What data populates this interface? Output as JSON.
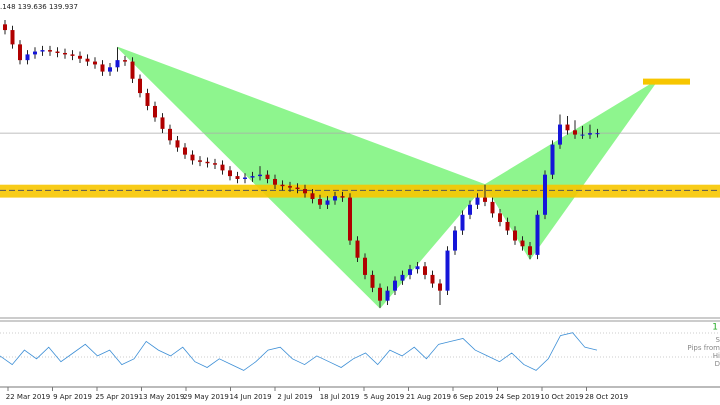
{
  "chart_data": {
    "type": "candlestick",
    "header": ".148 139.636 139.937",
    "ylim": [
      125.0,
      147.0
    ],
    "open": [
      145.3,
      144.9,
      143.9,
      142.8,
      143.2,
      143.4,
      143.5,
      143.4,
      143.3,
      143.2,
      143.1,
      142.9,
      142.7,
      142.5,
      142.0,
      142.3,
      142.8,
      142.7,
      141.5,
      140.5,
      139.6,
      138.8,
      138.0,
      137.2,
      136.7,
      136.2,
      135.8,
      135.7,
      135.6,
      135.5,
      135.1,
      134.7,
      134.5,
      134.6,
      134.7,
      134.8,
      134.5,
      134.1,
      134.0,
      133.9,
      133.8,
      133.5,
      133.1,
      132.7,
      133.0,
      133.3,
      133.2,
      130.2,
      129.0,
      127.8,
      126.9,
      126.0,
      126.7,
      127.4,
      127.8,
      128.2,
      128.4,
      127.8,
      127.2,
      126.7,
      129.5,
      130.9,
      132.0,
      132.7,
      133.2,
      132.9,
      132.1,
      131.5,
      130.9,
      130.2,
      129.8,
      129.2,
      132.0,
      134.8,
      136.9,
      138.3,
      137.9,
      137.6,
      137.6,
      137.7
    ],
    "high": [
      145.6,
      145.2,
      144.2,
      143.5,
      143.7,
      143.8,
      143.8,
      143.7,
      143.6,
      143.5,
      143.4,
      143.2,
      143.0,
      142.8,
      142.6,
      143.7,
      143.1,
      143.0,
      141.8,
      140.8,
      139.9,
      139.1,
      138.3,
      137.5,
      137.0,
      136.5,
      136.1,
      136.0,
      135.9,
      135.8,
      135.4,
      135.0,
      134.9,
      135.0,
      135.4,
      135.1,
      134.8,
      134.4,
      134.3,
      134.2,
      134.1,
      133.8,
      133.4,
      133.3,
      133.6,
      133.6,
      133.5,
      130.5,
      129.3,
      128.1,
      127.2,
      127.0,
      127.7,
      128.1,
      128.5,
      128.7,
      128.7,
      128.1,
      127.5,
      129.8,
      131.2,
      132.3,
      133.0,
      133.5,
      134.1,
      133.2,
      132.4,
      131.8,
      131.2,
      130.5,
      130.1,
      132.3,
      135.1,
      137.2,
      139.0,
      138.9,
      138.6,
      138.2,
      138.3,
      138.0
    ],
    "low": [
      144.6,
      143.6,
      142.5,
      142.5,
      142.9,
      143.1,
      143.1,
      143.0,
      142.9,
      142.8,
      142.6,
      142.4,
      142.2,
      141.7,
      141.7,
      142.0,
      142.4,
      141.2,
      140.2,
      139.3,
      138.5,
      137.7,
      136.9,
      136.4,
      135.9,
      135.5,
      135.4,
      135.3,
      135.2,
      134.8,
      134.4,
      134.2,
      134.2,
      134.3,
      134.4,
      134.2,
      133.8,
      133.7,
      133.6,
      133.5,
      133.2,
      132.8,
      132.4,
      132.4,
      132.7,
      132.9,
      129.9,
      128.7,
      127.5,
      126.6,
      125.5,
      125.7,
      126.4,
      127.1,
      127.5,
      127.9,
      127.5,
      126.9,
      125.7,
      126.4,
      129.2,
      130.6,
      131.7,
      132.4,
      132.6,
      131.8,
      131.2,
      130.6,
      129.9,
      129.5,
      128.9,
      128.9,
      131.7,
      134.5,
      136.6,
      137.6,
      137.3,
      137.3,
      137.3,
      137.4
    ],
    "close": [
      144.9,
      143.9,
      142.8,
      143.2,
      143.4,
      143.5,
      143.4,
      143.3,
      143.2,
      143.1,
      142.9,
      142.7,
      142.5,
      142.0,
      142.3,
      142.8,
      142.7,
      141.5,
      140.5,
      139.6,
      138.8,
      138.0,
      137.2,
      136.7,
      136.2,
      135.8,
      135.7,
      135.6,
      135.5,
      135.1,
      134.7,
      134.5,
      134.6,
      134.7,
      134.8,
      134.5,
      134.1,
      134.0,
      133.9,
      133.8,
      133.5,
      133.1,
      132.7,
      133.0,
      133.3,
      133.2,
      130.2,
      129.0,
      127.8,
      126.9,
      126.0,
      126.7,
      127.4,
      127.8,
      128.2,
      128.4,
      127.8,
      127.2,
      126.7,
      129.5,
      130.9,
      132.0,
      132.7,
      133.2,
      132.9,
      132.1,
      131.5,
      130.9,
      130.2,
      129.8,
      129.2,
      132.0,
      134.8,
      136.9,
      138.3,
      137.9,
      137.6,
      137.6,
      137.7,
      137.7
    ],
    "up_color": "#1515d8",
    "down_color": "#b00000",
    "current_price": 137.7,
    "pattern": [
      {
        "x": 15,
        "price": 143.7
      },
      {
        "x": 50,
        "price": 125.5
      },
      {
        "x": 64,
        "price": 134.1
      },
      {
        "x": 70,
        "price": 128.9
      },
      {
        "x": 87,
        "price": 141.4
      }
    ],
    "pattern_color": "#8ef58e",
    "zone": {
      "top": 134.1,
      "bottom": 133.2,
      "mid": 133.7,
      "color": "#f7c600"
    },
    "target": {
      "price": 141.3,
      "color": "#f7c600"
    },
    "x_labels": [
      "22 Mar 2019",
      "9 Apr 2019",
      "25 Apr 2019",
      "13 May 2019",
      "29 May 2019",
      "14 Jun 2019",
      "2 Jul 2019",
      "18 Jul 2019",
      "5 Aug 2019",
      "21 Aug 2019",
      "6 Sep 2019",
      "24 Sep 2019",
      "10 Oct 2019",
      "28 Oct 2019"
    ],
    "oscillator": {
      "ylim": [
        0,
        100
      ],
      "color": "#3d8fd6",
      "values": [
        45,
        30,
        55,
        40,
        60,
        35,
        50,
        65,
        45,
        55,
        30,
        40,
        70,
        55,
        45,
        60,
        35,
        25,
        40,
        30,
        20,
        35,
        55,
        60,
        40,
        30,
        45,
        35,
        25,
        40,
        50,
        30,
        55,
        45,
        60,
        40,
        65,
        70,
        75,
        55,
        45,
        35,
        50,
        30,
        20,
        40,
        80,
        85,
        60,
        55
      ]
    },
    "info": {
      "count": "1",
      "lines": [
        "S",
        "Pips from",
        "Hi",
        "D"
      ]
    }
  }
}
